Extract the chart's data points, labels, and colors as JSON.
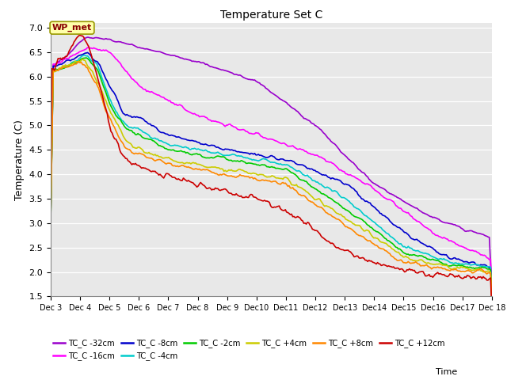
{
  "title": "Temperature Set C",
  "xlabel": "Time",
  "ylabel": "Temperature (C)",
  "ylim": [
    1.5,
    7.1
  ],
  "xtick_labels": [
    "Dec 3",
    "Dec 4",
    "Dec 5",
    "Dec 6",
    "Dec 7",
    "Dec 8",
    "Dec 9",
    "Dec 10",
    "Dec 11",
    "Dec 12",
    "Dec 13",
    "Dec 14",
    "Dec 15",
    "Dec 16",
    "Dec 17",
    "Dec 18"
  ],
  "bg_color": "#E8E8E8",
  "annotation_text": "WP_met",
  "series": [
    {
      "label": "TC_C -32cm",
      "color": "#9900CC",
      "lw": 1.2
    },
    {
      "label": "TC_C -16cm",
      "color": "#FF00FF",
      "lw": 1.2
    },
    {
      "label": "TC_C -8cm",
      "color": "#0000CC",
      "lw": 1.2
    },
    {
      "label": "TC_C -4cm",
      "color": "#00CCCC",
      "lw": 1.2
    },
    {
      "label": "TC_C -2cm",
      "color": "#00CC00",
      "lw": 1.2
    },
    {
      "label": "TC_C +4cm",
      "color": "#CCCC00",
      "lw": 1.2
    },
    {
      "label": "TC_C +8cm",
      "color": "#FF8800",
      "lw": 1.2
    },
    {
      "label": "TC_C +12cm",
      "color": "#CC0000",
      "lw": 1.2
    }
  ]
}
